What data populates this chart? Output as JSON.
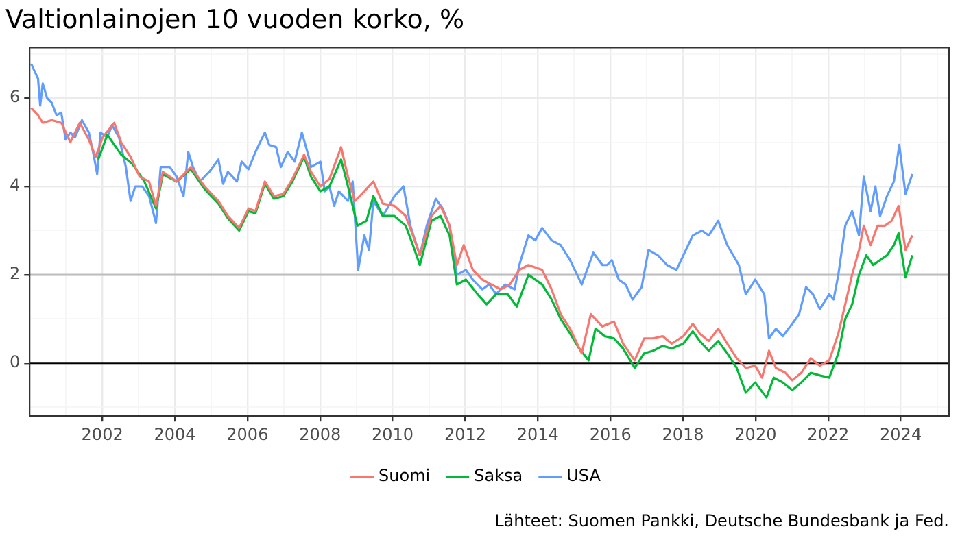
{
  "chart_data": {
    "type": "line",
    "title": "Valtionlainojen 10 vuoden korko, %",
    "xlim": [
      2000.0,
      2025.33
    ],
    "ylim": [
      -1.2,
      7.14
    ],
    "xticks": [
      {
        "value": 2001,
        "label": null
      },
      2002,
      {
        "value": 2003,
        "label": null
      },
      2004,
      {
        "value": 2005,
        "label": null
      },
      2006,
      {
        "value": 2007,
        "label": null
      },
      2008,
      {
        "value": 2009,
        "label": null
      },
      2010,
      {
        "value": 2011,
        "label": null
      },
      2012,
      {
        "value": 2013,
        "label": null
      },
      2014,
      {
        "value": 2015,
        "label": null
      },
      2016,
      {
        "value": 2017,
        "label": null
      },
      2018,
      {
        "value": 2019,
        "label": null
      },
      2020,
      {
        "value": 2021,
        "label": null
      },
      2022,
      {
        "value": 2023,
        "label": null
      },
      2024,
      {
        "value": 2025,
        "label": null
      }
    ],
    "yticks": [
      {
        "value": -1,
        "label": null
      },
      0,
      {
        "value": 1,
        "label": null
      },
      2,
      {
        "value": 3,
        "label": null
      },
      4,
      {
        "value": 5,
        "label": null
      },
      6,
      {
        "value": 7,
        "label": null
      }
    ],
    "grid": true,
    "legend": "bottom",
    "marker": "none",
    "line_style": "solid",
    "ref_lines": [
      {
        "axis": "y",
        "value": 0,
        "color": "#000000"
      },
      {
        "axis": "y",
        "value": 2,
        "color": "#bebebe"
      }
    ],
    "annotations": [
      "Lähteet: Suomen Pankki, Deutsche Bundesbank ja Fed."
    ],
    "series": [
      {
        "name": "Suomi",
        "color": "#f8766d",
        "x": [
          2000.04,
          2000.23,
          2000.36,
          2000.61,
          2000.87,
          2001.12,
          2001.38,
          2001.63,
          2001.82,
          2002.01,
          2002.33,
          2002.52,
          2002.78,
          2003.03,
          2003.29,
          2003.48,
          2003.67,
          2004.05,
          2004.44,
          2004.82,
          2005.2,
          2005.46,
          2005.77,
          2006.03,
          2006.22,
          2006.48,
          2006.73,
          2006.99,
          2007.24,
          2007.56,
          2007.75,
          2008.01,
          2008.26,
          2008.58,
          2008.77,
          2008.96,
          2009.22,
          2009.47,
          2009.73,
          2010.05,
          2010.36,
          2010.56,
          2010.75,
          2011.07,
          2011.32,
          2011.57,
          2011.77,
          2011.96,
          2012.21,
          2012.47,
          2012.72,
          2012.98,
          2013.23,
          2013.49,
          2013.74,
          2014.12,
          2014.38,
          2014.63,
          2014.89,
          2015.21,
          2015.46,
          2015.78,
          2016.1,
          2016.35,
          2016.67,
          2016.93,
          2017.18,
          2017.44,
          2017.69,
          2018.01,
          2018.27,
          2018.46,
          2018.71,
          2018.97,
          2019.22,
          2019.48,
          2019.73,
          2019.99,
          2020.18,
          2020.37,
          2020.56,
          2020.82,
          2021.01,
          2021.26,
          2021.52,
          2021.77,
          2022.03,
          2022.28,
          2022.47,
          2022.66,
          2022.85,
          2022.98,
          2023.17,
          2023.36,
          2023.56,
          2023.75,
          2023.94,
          2024.13,
          2024.32
        ],
        "values": [
          5.78,
          5.61,
          5.44,
          5.5,
          5.44,
          5.0,
          5.44,
          5.06,
          4.67,
          5.11,
          5.44,
          5.0,
          4.67,
          4.22,
          4.11,
          3.56,
          4.33,
          4.11,
          4.44,
          4.0,
          3.67,
          3.33,
          3.06,
          3.5,
          3.44,
          4.11,
          3.78,
          3.83,
          4.17,
          4.72,
          4.33,
          4.0,
          4.17,
          4.89,
          4.22,
          3.67,
          3.89,
          4.11,
          3.61,
          3.56,
          3.33,
          2.89,
          2.44,
          3.33,
          3.56,
          3.11,
          2.22,
          2.67,
          2.11,
          1.89,
          1.78,
          1.67,
          1.78,
          2.11,
          2.22,
          2.11,
          1.67,
          1.11,
          0.78,
          0.22,
          1.11,
          0.83,
          0.94,
          0.44,
          0.06,
          0.56,
          0.56,
          0.61,
          0.44,
          0.61,
          0.89,
          0.67,
          0.5,
          0.78,
          0.44,
          0.11,
          -0.11,
          -0.06,
          -0.33,
          0.28,
          -0.11,
          -0.22,
          -0.39,
          -0.22,
          0.11,
          -0.06,
          0.06,
          0.67,
          1.33,
          2.0,
          2.56,
          3.11,
          2.67,
          3.11,
          3.11,
          3.22,
          3.56,
          2.56,
          2.89
        ]
      },
      {
        "name": "Saksa",
        "color": "#00ba38",
        "x": [
          2001.89,
          2002.14,
          2002.52,
          2002.84,
          2003.16,
          2003.48,
          2003.67,
          2004.05,
          2004.44,
          2004.82,
          2005.2,
          2005.46,
          2005.77,
          2006.03,
          2006.22,
          2006.48,
          2006.73,
          2006.99,
          2007.24,
          2007.56,
          2007.75,
          2008.01,
          2008.26,
          2008.58,
          2008.77,
          2009.03,
          2009.28,
          2009.47,
          2009.73,
          2010.05,
          2010.36,
          2010.56,
          2010.75,
          2011.07,
          2011.32,
          2011.57,
          2011.77,
          2012.02,
          2012.34,
          2012.59,
          2012.85,
          2013.17,
          2013.42,
          2013.74,
          2014.12,
          2014.38,
          2014.63,
          2014.89,
          2015.14,
          2015.4,
          2015.59,
          2015.84,
          2016.1,
          2016.35,
          2016.67,
          2016.93,
          2017.18,
          2017.44,
          2017.69,
          2018.01,
          2018.27,
          2018.46,
          2018.71,
          2018.97,
          2019.22,
          2019.48,
          2019.73,
          2019.99,
          2020.3,
          2020.5,
          2020.75,
          2021.01,
          2021.26,
          2021.52,
          2021.77,
          2022.03,
          2022.28,
          2022.47,
          2022.66,
          2022.85,
          2023.05,
          2023.24,
          2023.43,
          2023.62,
          2023.81,
          2023.94,
          2024.13,
          2024.32
        ],
        "values": [
          4.61,
          5.17,
          4.72,
          4.5,
          4.11,
          3.5,
          4.27,
          4.11,
          4.39,
          3.94,
          3.61,
          3.28,
          3.0,
          3.44,
          3.39,
          4.06,
          3.72,
          3.78,
          4.11,
          4.67,
          4.22,
          3.89,
          4.0,
          4.61,
          4.0,
          3.11,
          3.22,
          3.78,
          3.33,
          3.33,
          3.11,
          2.67,
          2.22,
          3.22,
          3.33,
          2.89,
          1.78,
          1.89,
          1.56,
          1.33,
          1.56,
          1.56,
          1.28,
          2.0,
          1.78,
          1.44,
          1.0,
          0.67,
          0.33,
          0.06,
          0.78,
          0.61,
          0.56,
          0.33,
          -0.11,
          0.22,
          0.28,
          0.39,
          0.33,
          0.44,
          0.72,
          0.5,
          0.28,
          0.5,
          0.22,
          -0.11,
          -0.67,
          -0.44,
          -0.78,
          -0.33,
          -0.44,
          -0.61,
          -0.44,
          -0.22,
          -0.28,
          -0.33,
          0.22,
          1.0,
          1.33,
          2.0,
          2.44,
          2.22,
          2.33,
          2.44,
          2.67,
          2.94,
          1.94,
          2.44
        ]
      },
      {
        "name": "USA",
        "color": "#619cff",
        "x": [
          2000.04,
          2000.23,
          2000.29,
          2000.36,
          2000.48,
          2000.61,
          2000.74,
          2000.87,
          2000.99,
          2001.12,
          2001.25,
          2001.44,
          2001.63,
          2001.76,
          2001.86,
          2001.95,
          2002.14,
          2002.27,
          2002.46,
          2002.65,
          2002.78,
          2002.91,
          2003.1,
          2003.29,
          2003.48,
          2003.61,
          2003.86,
          2004.05,
          2004.24,
          2004.37,
          2004.5,
          2004.69,
          2004.95,
          2005.2,
          2005.33,
          2005.46,
          2005.71,
          2005.84,
          2006.03,
          2006.22,
          2006.48,
          2006.6,
          2006.79,
          2006.92,
          2007.11,
          2007.3,
          2007.5,
          2007.69,
          2007.75,
          2008.01,
          2008.13,
          2008.26,
          2008.39,
          2008.52,
          2008.77,
          2008.9,
          2009.05,
          2009.22,
          2009.35,
          2009.47,
          2009.73,
          2010.05,
          2010.3,
          2010.49,
          2010.75,
          2010.94,
          2011.19,
          2011.38,
          2011.57,
          2011.77,
          2012.02,
          2012.21,
          2012.47,
          2012.66,
          2012.85,
          2013.1,
          2013.36,
          2013.49,
          2013.74,
          2013.93,
          2014.12,
          2014.38,
          2014.63,
          2014.89,
          2015.21,
          2015.53,
          2015.78,
          2015.91,
          2016.04,
          2016.23,
          2016.42,
          2016.61,
          2016.86,
          2017.05,
          2017.31,
          2017.56,
          2017.82,
          2018.01,
          2018.27,
          2018.52,
          2018.71,
          2018.97,
          2019.22,
          2019.54,
          2019.73,
          2019.99,
          2020.24,
          2020.37,
          2020.56,
          2020.75,
          2021.01,
          2021.2,
          2021.39,
          2021.58,
          2021.77,
          2022.03,
          2022.15,
          2022.28,
          2022.47,
          2022.66,
          2022.85,
          2022.98,
          2023.17,
          2023.3,
          2023.43,
          2023.62,
          2023.81,
          2023.96,
          2024.13,
          2024.32
        ],
        "values": [
          6.78,
          6.44,
          5.83,
          6.33,
          6.0,
          5.89,
          5.61,
          5.67,
          5.06,
          5.22,
          5.11,
          5.5,
          5.22,
          4.72,
          4.28,
          5.22,
          5.11,
          5.39,
          5.11,
          4.44,
          3.67,
          4.0,
          4.0,
          3.78,
          3.17,
          4.44,
          4.44,
          4.22,
          3.78,
          4.78,
          4.44,
          4.11,
          4.33,
          4.61,
          4.06,
          4.33,
          4.11,
          4.56,
          4.39,
          4.78,
          5.22,
          4.94,
          4.89,
          4.44,
          4.78,
          4.56,
          5.22,
          4.67,
          4.44,
          4.56,
          3.89,
          4.0,
          3.56,
          3.89,
          3.67,
          4.11,
          2.11,
          2.89,
          2.56,
          3.67,
          3.33,
          3.78,
          4.0,
          3.11,
          2.44,
          3.11,
          3.72,
          3.5,
          3.11,
          2.0,
          2.11,
          1.89,
          1.67,
          1.78,
          1.56,
          1.78,
          1.67,
          2.22,
          2.89,
          2.78,
          3.06,
          2.78,
          2.67,
          2.33,
          1.78,
          2.5,
          2.22,
          2.22,
          2.33,
          1.89,
          1.78,
          1.44,
          1.72,
          2.56,
          2.44,
          2.22,
          2.11,
          2.44,
          2.89,
          3.0,
          2.89,
          3.22,
          2.67,
          2.22,
          1.56,
          1.89,
          1.56,
          0.56,
          0.78,
          0.61,
          0.89,
          1.11,
          1.72,
          1.56,
          1.22,
          1.56,
          1.44,
          2.0,
          3.11,
          3.44,
          2.89,
          4.22,
          3.44,
          4.0,
          3.33,
          3.78,
          4.11,
          4.94,
          3.83,
          4.28
        ]
      }
    ]
  }
}
